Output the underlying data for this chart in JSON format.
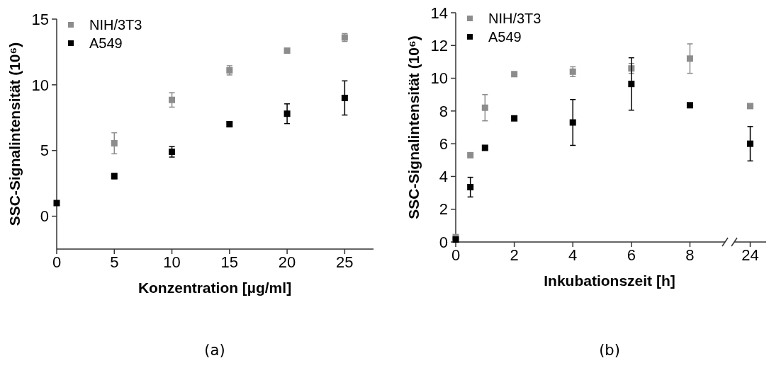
{
  "chart_data": [
    {
      "type": "scatter",
      "xlabel": "Konzentration [µg/ml]",
      "ylabel": "SSC-Signalintensität (10⁶)",
      "annotations": [
        "(a)"
      ],
      "x": [
        0,
        5,
        10,
        15,
        20,
        25
      ],
      "xlim": [
        0,
        27.5
      ],
      "xticks": [
        0,
        5,
        10,
        15,
        20,
        25
      ],
      "ylim": [
        -2.5,
        15
      ],
      "yticks": [
        0,
        5,
        10,
        15
      ],
      "marker": "square",
      "legend": "top left",
      "grid": false,
      "series": [
        {
          "name": "NIH/3T3",
          "color": "#8c8c8c",
          "values": [
            null,
            5.55,
            8.85,
            11.1,
            12.6,
            13.6
          ],
          "errors": [
            null,
            0.8,
            0.55,
            0.35,
            null,
            0.3
          ]
        },
        {
          "name": "A549",
          "color": "#000000",
          "values": [
            1.0,
            3.05,
            4.9,
            7.0,
            7.8,
            9.0
          ],
          "errors": [
            null,
            0.2,
            0.4,
            0.2,
            0.75,
            1.3
          ]
        }
      ]
    },
    {
      "type": "scatter",
      "xlabel": "Inkubationszeit [h]",
      "ylabel": "SSC-Signalintensität (10⁶)",
      "annotations": [
        "(b)"
      ],
      "x": [
        0,
        0.5,
        1,
        2,
        4,
        6,
        8
      ],
      "xlim": [
        0,
        9.2
      ],
      "xticks": [
        0,
        2,
        4,
        6,
        8
      ],
      "ylim": [
        0,
        14
      ],
      "yticks": [
        0,
        2,
        4,
        6,
        8,
        10,
        12,
        14
      ],
      "marker": "square",
      "legend": "top left",
      "grid": false,
      "series": [
        {
          "name": "NIH/3T3",
          "color": "#8c8c8c",
          "values": [
            0.3,
            5.3,
            8.2,
            10.25,
            10.4,
            10.6,
            11.2
          ],
          "errors": [
            null,
            null,
            0.8,
            null,
            0.3,
            0.3,
            0.9
          ]
        },
        {
          "name": "A549",
          "color": "#000000",
          "values": [
            0.15,
            3.35,
            5.75,
            7.55,
            7.3,
            9.65,
            8.35
          ],
          "errors": [
            null,
            0.6,
            null,
            null,
            1.4,
            1.6,
            null
          ]
        }
      ]
    },
    {
      "type": "scatter",
      "categories": [
        "24"
      ],
      "ylim": [
        0,
        14
      ],
      "tick_labels": "x",
      "marker": "square",
      "grid": false,
      "series": [
        {
          "color": "#8c8c8c",
          "values": [
            8.3
          ],
          "errors": [
            null
          ]
        },
        {
          "color": "#000000",
          "values": [
            6.0
          ],
          "errors": [
            1.05
          ]
        }
      ]
    }
  ]
}
